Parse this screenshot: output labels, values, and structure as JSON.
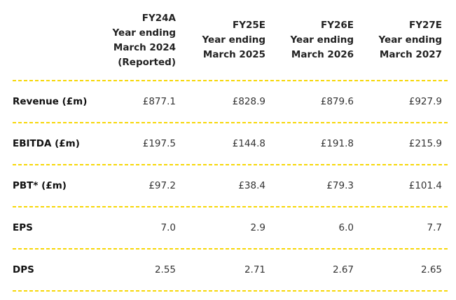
{
  "columns": [
    {
      "lines": [
        "FY24A",
        "Year ending",
        "March 2024",
        "(Reported)"
      ]
    },
    {
      "lines": [
        "FY25E",
        "Year ending",
        "March 2025"
      ]
    },
    {
      "lines": [
        "FY26E",
        "Year ending",
        "March 2026"
      ]
    },
    {
      "lines": [
        "FY27E",
        "Year ending",
        "March 2027"
      ]
    }
  ],
  "rows": [
    {
      "label": "Revenue (£m)",
      "values": [
        "£877.1",
        "£828.9",
        "£879.6",
        "£927.9"
      ]
    },
    {
      "label": "EBITDA (£m)",
      "values": [
        "£197.5",
        "£144.8",
        "£191.8",
        "£215.9"
      ]
    },
    {
      "label": "PBT* (£m)",
      "values": [
        "£97.2",
        "£38.4",
        "£79.3",
        "£101.4"
      ]
    },
    {
      "label": "EPS",
      "values": [
        "7.0",
        "2.9",
        "6.0",
        "7.7"
      ]
    },
    {
      "label": "DPS",
      "values": [
        "2.55",
        "2.71",
        "2.67",
        "2.65"
      ]
    }
  ],
  "colors": {
    "separator": "#f7d708",
    "text": "#222222"
  }
}
